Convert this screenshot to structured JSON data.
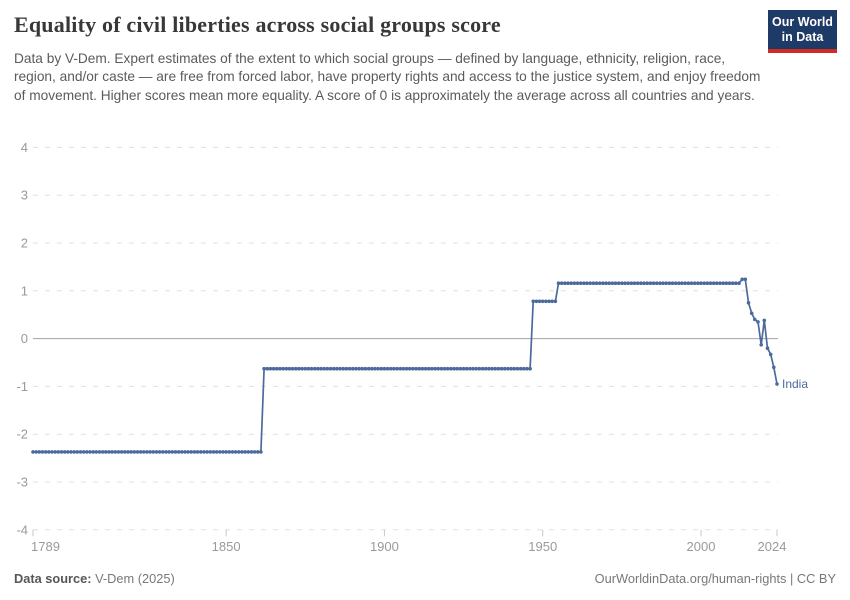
{
  "header": {
    "title": "Equality of civil liberties across social groups score",
    "subtitle": "Data by V-Dem. Expert estimates of the extent to which social groups — defined by language, ethnicity, religion, race, region, and/or caste — are free from forced labor, have property rights and access to the justice system, and enjoy freedom of movement. Higher scores mean more equality. A score of 0 is approximately the average across all countries and years.",
    "logo": {
      "line1": "Our World",
      "line2": "in Data",
      "bg_color": "#1e3a66",
      "accent_color": "#cf2d24"
    }
  },
  "footer": {
    "source_label": "Data source:",
    "source_value": " V-Dem (2025)",
    "credit": "OurWorldinData.org/human-rights | CC BY"
  },
  "chart_data": {
    "type": "line",
    "title": "Equality of civil liberties across social groups score",
    "xlabel": "",
    "ylabel": "",
    "x": {
      "min": 1789,
      "max": 2024,
      "ticks": [
        1789,
        1850,
        1900,
        1950,
        2000,
        2024
      ]
    },
    "y": {
      "min": -4,
      "max": 4,
      "ticks": [
        4,
        3,
        2,
        1,
        0,
        -1,
        -2,
        -3,
        -4
      ],
      "zero_line": true
    },
    "grid": {
      "horizontal": true,
      "style": "dashed",
      "color": "#e0e0e0",
      "zero_line_color": "#a3a3a3"
    },
    "legend_position": "end-of-line",
    "series": [
      {
        "name": "India",
        "color": "#4c6a9c",
        "segments": [
          {
            "start": 1789,
            "end": 1861,
            "value": -2.37
          },
          {
            "start": 1862,
            "end": 1946,
            "value": -0.63
          },
          {
            "start": 1947,
            "end": 1954,
            "value": 0.78
          },
          {
            "start": 1955,
            "end": 2012,
            "value": 1.16
          }
        ],
        "annual_points": [
          [
            2013,
            1.24
          ],
          [
            2014,
            1.24
          ],
          [
            2015,
            0.75
          ],
          [
            2016,
            0.53
          ],
          [
            2017,
            0.4
          ],
          [
            2018,
            0.35
          ],
          [
            2019,
            -0.13
          ],
          [
            2020,
            0.38
          ],
          [
            2021,
            -0.2
          ],
          [
            2022,
            -0.33
          ],
          [
            2023,
            -0.6
          ],
          [
            2024,
            -0.95
          ]
        ]
      }
    ]
  }
}
